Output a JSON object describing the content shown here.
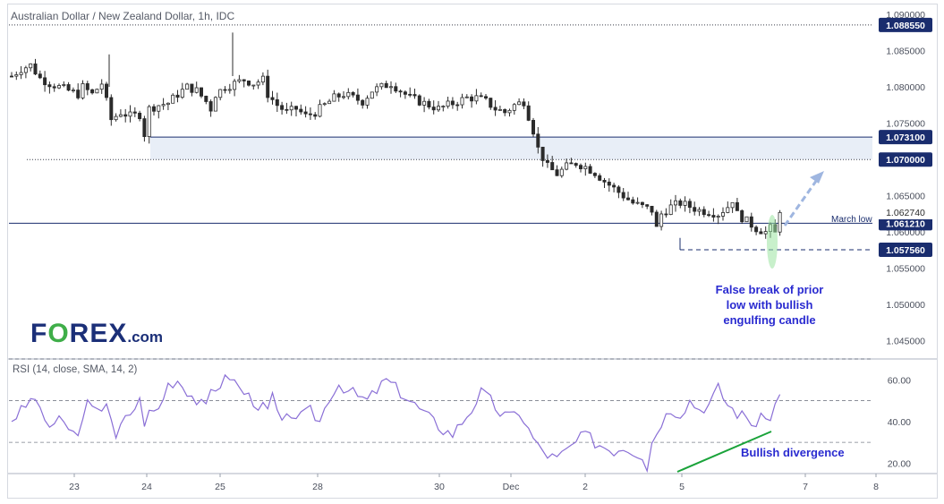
{
  "header": {
    "title": "Australian Dollar / New Zealand Dollar, 1h, IDC",
    "rsi_title": "RSI (14, close, SMA, 14, 2)"
  },
  "logo": {
    "part1": "F",
    "part2": "O",
    "part3": "REX",
    "part4": ".com"
  },
  "annotations": {
    "false_break": [
      "False break of prior",
      "low with bullish",
      "engulfing candle"
    ],
    "divergence": "Bullish divergence",
    "march_low": "March low"
  },
  "colors": {
    "up_candle": "#ffffff",
    "down_candle": "#2b2b2b",
    "level_line": "#1a2d6e",
    "zone_fill": "#e8eef7",
    "rsi_line": "#8a6fd6",
    "divergence_line": "#1aa33a",
    "arrow": "#9fb6e0",
    "engulfing_highlight": "#9be3a1",
    "label_bg": "#1a2d6e",
    "annotation_text": "#2a2bd0"
  },
  "chart_data": {
    "type": "candlestick",
    "title": "Australian Dollar / New Zealand Dollar, 1h, IDC",
    "price_axis": {
      "range": [
        1.0425,
        1.0915
      ],
      "ticks": [
        "1.090000",
        "1.085000",
        "1.080000",
        "1.075000",
        "1.070000",
        "1.065000",
        "1.060000",
        "1.055000",
        "1.050000",
        "1.045000"
      ]
    },
    "time_axis": {
      "labels": [
        "23",
        "24",
        "25",
        "28",
        "30",
        "Dec",
        "2",
        "5",
        "7",
        "8"
      ]
    },
    "levels": [
      {
        "value": 1.08855,
        "label": "1.088550",
        "style": "dotted"
      },
      {
        "value": 1.0731,
        "label": "1.073100",
        "style": "solid"
      },
      {
        "value": 1.07,
        "label": "1.070000",
        "style": "dotted"
      },
      {
        "value": 1.06121,
        "label": "1.061210",
        "style": "solid",
        "note": "March low"
      },
      {
        "value": 1.05756,
        "label": "1.057560",
        "style": "dashed"
      }
    ],
    "last_price": {
      "value": 1.06274,
      "label": "1.062740"
    },
    "price_path": [
      [
        0,
        1.0815
      ],
      [
        2,
        1.0825
      ],
      [
        4,
        1.083
      ],
      [
        6,
        1.0812
      ],
      [
        8,
        1.0805
      ],
      [
        10,
        1.08
      ],
      [
        12,
        1.0795
      ],
      [
        14,
        1.079
      ],
      [
        15,
        1.08
      ],
      [
        17,
        1.079
      ],
      [
        19,
        1.0805
      ],
      [
        20,
        1.078
      ],
      [
        21,
        1.0755
      ],
      [
        23,
        1.0765
      ],
      [
        25,
        1.076
      ],
      [
        27,
        1.0762
      ],
      [
        28,
        1.0735
      ],
      [
        29,
        1.077
      ],
      [
        31,
        1.0775
      ],
      [
        33,
        1.0778
      ],
      [
        35,
        1.079
      ],
      [
        37,
        1.08
      ],
      [
        39,
        1.0795
      ],
      [
        41,
        1.078
      ],
      [
        42,
        1.077
      ],
      [
        43,
        1.079
      ],
      [
        45,
        1.08
      ],
      [
        47,
        1.0805
      ],
      [
        49,
        1.081
      ],
      [
        51,
        1.0805
      ],
      [
        53,
        1.081
      ],
      [
        54,
        1.079
      ],
      [
        56,
        1.0775
      ],
      [
        58,
        1.0765
      ],
      [
        60,
        1.077
      ],
      [
        62,
        1.076
      ],
      [
        64,
        1.0765
      ],
      [
        66,
        1.0775
      ],
      [
        68,
        1.0785
      ],
      [
        70,
        1.079
      ],
      [
        72,
        1.0785
      ],
      [
        74,
        1.078
      ],
      [
        76,
        1.0795
      ],
      [
        78,
        1.08
      ],
      [
        80,
        1.0805
      ],
      [
        82,
        1.0795
      ],
      [
        84,
        1.0785
      ],
      [
        86,
        1.078
      ],
      [
        88,
        1.0775
      ],
      [
        90,
        1.077
      ],
      [
        92,
        1.0775
      ],
      [
        94,
        1.078
      ],
      [
        96,
        1.0785
      ],
      [
        98,
        1.0785
      ],
      [
        100,
        1.078
      ],
      [
        102,
        1.077
      ],
      [
        104,
        1.0765
      ],
      [
        106,
        1.0775
      ],
      [
        108,
        1.078
      ],
      [
        109,
        1.076
      ],
      [
        110,
        1.074
      ],
      [
        111,
        1.0715
      ],
      [
        113,
        1.069
      ],
      [
        115,
        1.068
      ],
      [
        117,
        1.069
      ],
      [
        119,
        1.0695
      ],
      [
        121,
        1.069
      ],
      [
        123,
        1.0682
      ],
      [
        125,
        1.067
      ],
      [
        127,
        1.066
      ],
      [
        129,
        1.065
      ],
      [
        131,
        1.064
      ],
      [
        133,
        1.0635
      ],
      [
        135,
        1.063
      ],
      [
        136,
        1.0605
      ],
      [
        137,
        1.0625
      ],
      [
        139,
        1.0635
      ],
      [
        141,
        1.064
      ],
      [
        143,
        1.0635
      ],
      [
        145,
        1.063
      ],
      [
        147,
        1.0628
      ],
      [
        149,
        1.0625
      ],
      [
        151,
        1.0635
      ],
      [
        152,
        1.0645
      ],
      [
        153,
        1.0625
      ],
      [
        155,
        1.0615
      ],
      [
        157,
        1.0605
      ],
      [
        159,
        1.06
      ],
      [
        160,
        1.0605
      ],
      [
        161,
        1.0598
      ],
      [
        162,
        1.0628
      ]
    ],
    "rsi": {
      "range": [
        15,
        70
      ],
      "levels": [
        70,
        50,
        30
      ],
      "ticks": [
        "60.00",
        "40.00",
        "20.00"
      ],
      "values": [
        [
          0,
          41
        ],
        [
          2,
          45
        ],
        [
          4,
          50
        ],
        [
          5,
          52
        ],
        [
          6,
          44
        ],
        [
          8,
          38
        ],
        [
          10,
          40
        ],
        [
          12,
          37
        ],
        [
          14,
          32
        ],
        [
          15,
          44
        ],
        [
          16,
          48
        ],
        [
          18,
          44
        ],
        [
          20,
          50
        ],
        [
          21,
          42
        ],
        [
          22,
          30
        ],
        [
          23,
          38
        ],
        [
          25,
          44
        ],
        [
          27,
          50
        ],
        [
          28,
          40
        ],
        [
          29,
          44
        ],
        [
          31,
          46
        ],
        [
          33,
          58
        ],
        [
          35,
          60
        ],
        [
          37,
          55
        ],
        [
          39,
          50
        ],
        [
          41,
          46
        ],
        [
          42,
          55
        ],
        [
          44,
          58
        ],
        [
          46,
          62
        ],
        [
          48,
          56
        ],
        [
          50,
          52
        ],
        [
          52,
          48
        ],
        [
          54,
          45
        ],
        [
          55,
          52
        ],
        [
          57,
          38
        ],
        [
          59,
          44
        ],
        [
          61,
          42
        ],
        [
          63,
          45
        ],
        [
          65,
          40
        ],
        [
          67,
          52
        ],
        [
          69,
          58
        ],
        [
          71,
          55
        ],
        [
          73,
          52
        ],
        [
          75,
          50
        ],
        [
          77,
          55
        ],
        [
          79,
          60
        ],
        [
          81,
          56
        ],
        [
          83,
          52
        ],
        [
          85,
          48
        ],
        [
          87,
          44
        ],
        [
          89,
          40
        ],
        [
          91,
          36
        ],
        [
          93,
          34
        ],
        [
          95,
          40
        ],
        [
          97,
          46
        ],
        [
          99,
          54
        ],
        [
          101,
          50
        ],
        [
          103,
          44
        ],
        [
          105,
          42
        ],
        [
          107,
          45
        ],
        [
          109,
          36
        ],
        [
          111,
          28
        ],
        [
          113,
          24
        ],
        [
          115,
          22
        ],
        [
          117,
          26
        ],
        [
          119,
          30
        ],
        [
          121,
          34
        ],
        [
          123,
          30
        ],
        [
          125,
          28
        ],
        [
          127,
          26
        ],
        [
          129,
          28
        ],
        [
          131,
          26
        ],
        [
          133,
          24
        ],
        [
          134,
          18
        ],
        [
          135,
          30
        ],
        [
          137,
          40
        ],
        [
          139,
          46
        ],
        [
          141,
          44
        ],
        [
          143,
          50
        ],
        [
          145,
          46
        ],
        [
          147,
          48
        ],
        [
          149,
          56
        ],
        [
          151,
          48
        ],
        [
          153,
          44
        ],
        [
          155,
          42
        ],
        [
          157,
          38
        ],
        [
          159,
          44
        ],
        [
          160,
          40
        ],
        [
          161,
          48
        ],
        [
          162,
          53
        ]
      ]
    }
  }
}
